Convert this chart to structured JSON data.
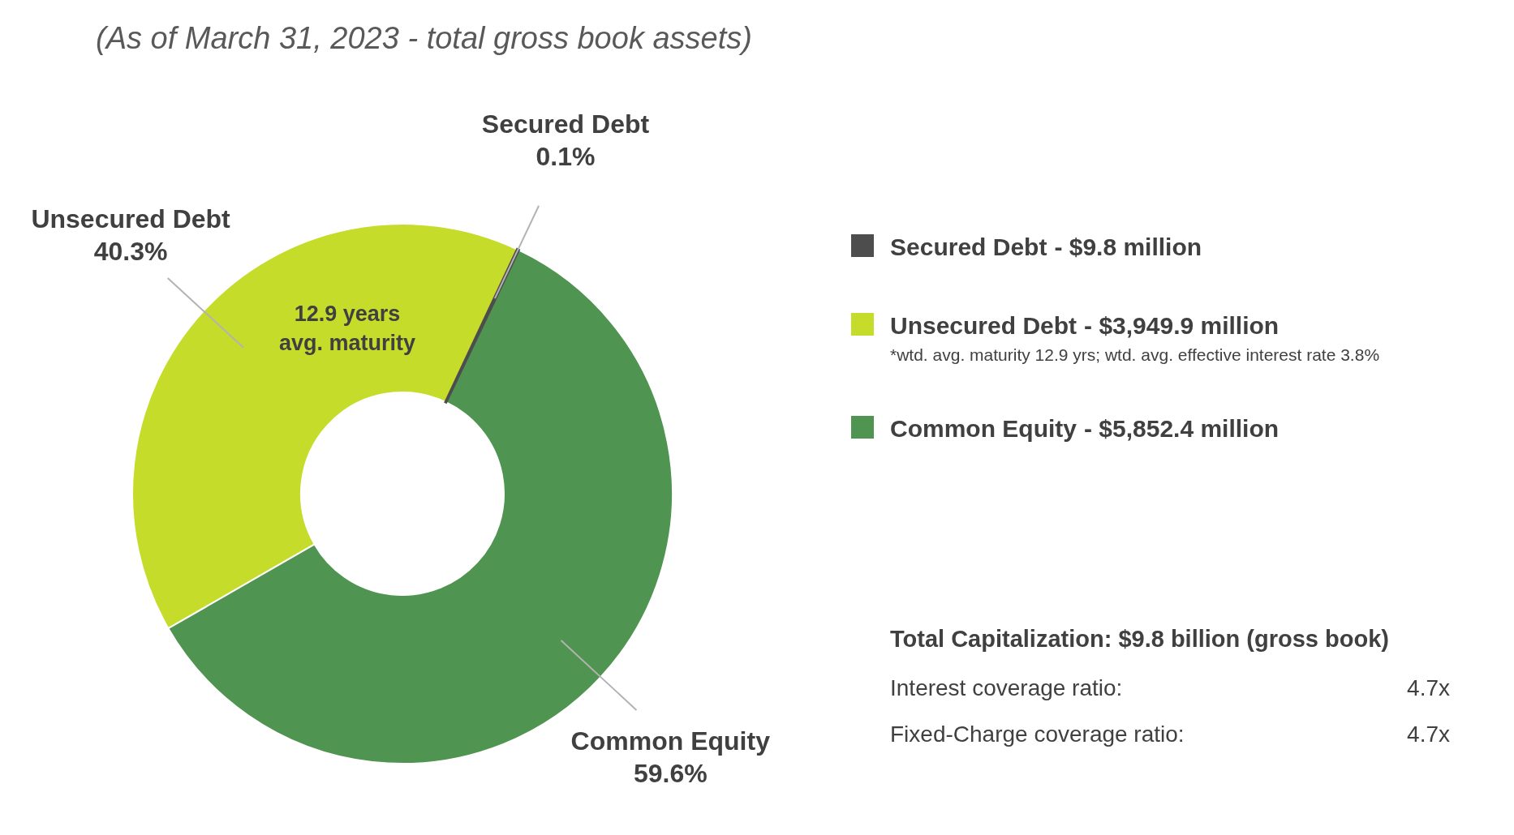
{
  "chart_data": {
    "type": "donut",
    "title": "(As of March 31, 2023 - total gross book assets)",
    "categories": [
      "Secured Debt",
      "Unsecured Debt",
      "Common Equity"
    ],
    "values": [
      0.1,
      40.3,
      59.6
    ],
    "colors": [
      "#4d4d4d",
      "#c6dc2a",
      "#4f9450"
    ],
    "value_labels": [
      "0.1%",
      "40.3%",
      "59.6%"
    ],
    "legend": "right",
    "annotations": [
      "- $9.8 million",
      "- $3,949.9 million",
      "- $5,852.4 million",
      "*wtd. avg. maturity 12.9 yrs; wtd. avg. effective interest rate 3.8%",
      "12.9 years avg. maturity",
      "Total Capitalization: $9.8 billion (gross book)",
      "Interest coverage ratio:",
      "4.7x",
      "Fixed-Charge coverage ratio:",
      "4.7x"
    ]
  }
}
